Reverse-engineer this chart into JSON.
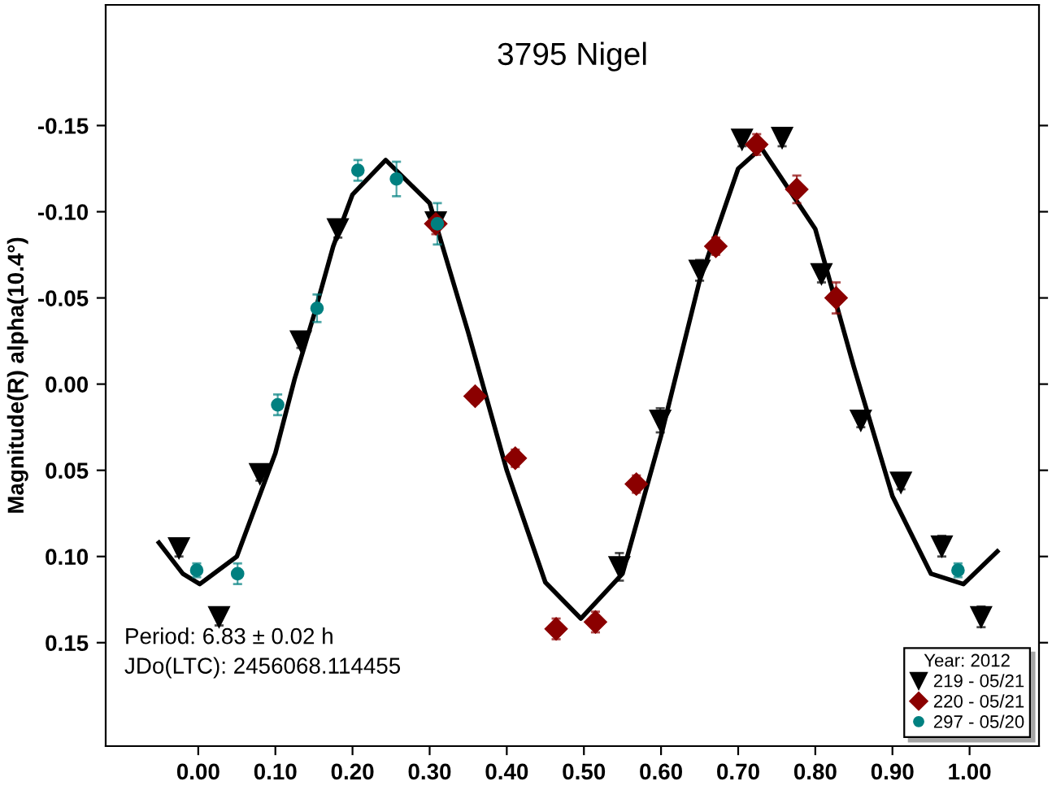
{
  "chart_data": {
    "type": "scatter",
    "title": "3795 Nigel",
    "ylabel": "Magnitude(R) alpha(10.4°)",
    "legend_title": "Year: 2012",
    "legend": "bottom right",
    "grid": false,
    "xlim": [
      -0.12,
      1.09
    ],
    "ylim": [
      0.21,
      -0.22
    ],
    "xticks": [
      {
        "value": 0,
        "label": "0.00"
      },
      {
        "value": 0.1,
        "label": "0.10"
      },
      {
        "value": 0.2,
        "label": "0.20"
      },
      {
        "value": 0.3,
        "label": "0.30"
      },
      {
        "value": 0.4,
        "label": "0.40"
      },
      {
        "value": 0.5,
        "label": "0.50"
      },
      {
        "value": 0.6,
        "label": "0.60"
      },
      {
        "value": 0.7,
        "label": "0.70"
      },
      {
        "value": 0.8,
        "label": "0.80"
      },
      {
        "value": 0.9,
        "label": "0.90"
      },
      {
        "value": 1,
        "label": "1.00"
      }
    ],
    "yticks": [
      {
        "value": -0.15,
        "label": "-0.15"
      },
      {
        "value": -0.1,
        "label": "-0.10"
      },
      {
        "value": -0.05,
        "label": "-0.05"
      },
      {
        "value": 0,
        "label": "0.00"
      },
      {
        "value": 0.05,
        "label": "0.05"
      },
      {
        "value": 0.1,
        "label": "0.10"
      },
      {
        "value": 0.15,
        "label": "0.15"
      }
    ],
    "annotations": [
      "Period: 6.83 ± 0.02 h",
      "JDo(LTC): 2456068.114455"
    ],
    "series": [
      {
        "type": "line",
        "color": "#000000",
        "marker": "none",
        "line_style": "solid",
        "x": [
          -0.051,
          -0.02,
          0.002,
          0.05,
          0.1,
          0.125,
          0.15,
          0.175,
          0.2,
          0.243,
          0.3,
          0.35,
          0.4,
          0.45,
          0.496,
          0.55,
          0.6,
          0.65,
          0.7,
          0.73,
          0.8,
          0.85,
          0.9,
          0.95,
          0.992,
          1.036
        ],
        "values": [
          0.092,
          0.11,
          0.116,
          0.1,
          0.04,
          -0.003,
          -0.04,
          -0.08,
          -0.11,
          -0.13,
          -0.105,
          -0.03,
          0.05,
          0.115,
          0.136,
          0.11,
          0.03,
          -0.06,
          -0.125,
          -0.137,
          -0.09,
          -0.01,
          0.065,
          0.11,
          0.116,
          0.097
        ]
      },
      {
        "name": "219 - 05/21",
        "marker": "triangle",
        "color": "#000000",
        "x": [
          -0.025,
          0.027,
          0.08,
          0.133,
          0.181,
          0.308,
          0.546,
          0.599,
          0.65,
          0.705,
          0.757,
          0.808,
          0.859,
          0.911,
          0.964,
          1.015
        ],
        "values": [
          0.095,
          0.135,
          0.052,
          -0.025,
          -0.09,
          -0.094,
          0.106,
          0.021,
          -0.066,
          -0.142,
          -0.143,
          -0.064,
          0.021,
          0.057,
          0.094,
          0.135
        ],
        "errors": [
          0.005,
          0.005,
          0.004,
          0.004,
          0.005,
          0.005,
          0.008,
          0.007,
          0.006,
          0.004,
          0.005,
          0.005,
          0.004,
          0.004,
          0.006,
          0.006
        ]
      },
      {
        "name": "220 - 05/21",
        "marker": "diamond",
        "color": "#8b0000",
        "x": [
          0.308,
          0.359,
          0.411,
          0.464,
          0.515,
          0.568,
          0.671,
          0.724,
          0.776,
          0.827
        ],
        "values": [
          -0.093,
          0.007,
          0.043,
          0.142,
          0.138,
          0.058,
          -0.08,
          -0.139,
          -0.113,
          -0.05
        ],
        "errors": [
          0.006,
          0.004,
          0.005,
          0.006,
          0.006,
          0.005,
          0.005,
          0.006,
          0.008,
          0.009
        ]
      },
      {
        "name": "297 - 05/20",
        "marker": "circle",
        "color": "#008080",
        "x": [
          -0.002,
          0.051,
          0.103,
          0.154,
          0.207,
          0.257,
          0.31,
          0.985
        ],
        "values": [
          0.108,
          0.11,
          0.012,
          -0.044,
          -0.124,
          -0.119,
          -0.093,
          0.108
        ],
        "errors": [
          0.004,
          0.006,
          0.006,
          0.008,
          0.006,
          0.01,
          0.012,
          0.004
        ]
      }
    ]
  }
}
